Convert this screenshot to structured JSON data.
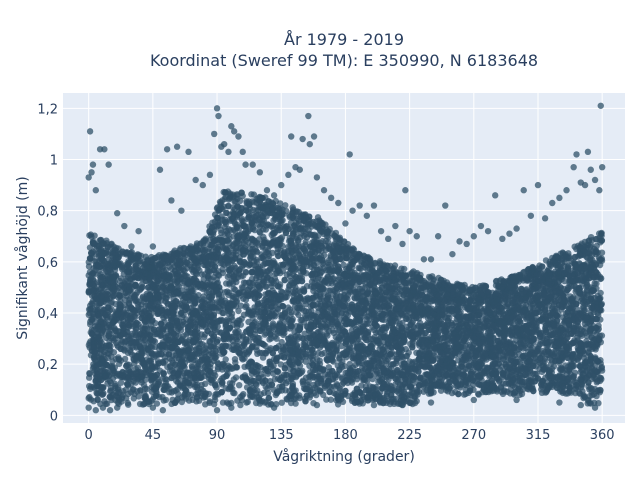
{
  "chart_data": {
    "type": "scatter",
    "title": [
      "År 1979 - 2019",
      "Koordinat (Sweref 99 TM): E 350990, N 6183648"
    ],
    "xlabel": "Vågriktning (grader)",
    "ylabel": "Signifikant våghöjd (m)",
    "x_ticks": [
      0,
      45,
      90,
      135,
      180,
      225,
      270,
      315,
      360
    ],
    "x_tick_labels": [
      "0",
      "45",
      "90",
      "135",
      "180",
      "225",
      "270",
      "315",
      "360"
    ],
    "y_ticks": [
      0,
      0.2,
      0.4,
      0.6,
      0.8,
      1,
      1.2
    ],
    "y_tick_labels": [
      "0",
      "0,2",
      "0,4",
      "0,6",
      "0,8",
      "1",
      "1,2"
    ],
    "xlim": [
      -18,
      376
    ],
    "ylim": [
      -0.03,
      1.26
    ],
    "grid": true,
    "marker_color": "#2f5168",
    "background_color": "#e5ecf6",
    "series": [
      {
        "points": [
          [
            0,
            0.93
          ],
          [
            1,
            1.11
          ],
          [
            2,
            0.95
          ],
          [
            3,
            0.98
          ],
          [
            5,
            0.88
          ],
          [
            8,
            1.04
          ],
          [
            11,
            1.04
          ],
          [
            14,
            0.98
          ],
          [
            20,
            0.79
          ],
          [
            25,
            0.74
          ],
          [
            30,
            0.66
          ],
          [
            35,
            0.72
          ],
          [
            40,
            0.62
          ],
          [
            45,
            0.66
          ],
          [
            50,
            0.96
          ],
          [
            55,
            1.04
          ],
          [
            58,
            0.84
          ],
          [
            62,
            1.05
          ],
          [
            65,
            0.8
          ],
          [
            70,
            1.03
          ],
          [
            75,
            0.92
          ],
          [
            80,
            0.9
          ],
          [
            85,
            0.94
          ],
          [
            88,
            1.1
          ],
          [
            90,
            1.2
          ],
          [
            91,
            1.17
          ],
          [
            93,
            1.05
          ],
          [
            95,
            1.06
          ],
          [
            98,
            1.03
          ],
          [
            100,
            1.13
          ],
          [
            102,
            1.11
          ],
          [
            105,
            1.09
          ],
          [
            108,
            1.03
          ],
          [
            110,
            0.98
          ],
          [
            115,
            0.98
          ],
          [
            120,
            0.95
          ],
          [
            125,
            0.88
          ],
          [
            130,
            0.86
          ],
          [
            135,
            0.9
          ],
          [
            140,
            0.94
          ],
          [
            142,
            1.09
          ],
          [
            145,
            0.97
          ],
          [
            148,
            0.96
          ],
          [
            150,
            1.08
          ],
          [
            154,
            1.17
          ],
          [
            155,
            1.06
          ],
          [
            158,
            1.09
          ],
          [
            160,
            0.93
          ],
          [
            165,
            0.88
          ],
          [
            170,
            0.85
          ],
          [
            175,
            0.83
          ],
          [
            180,
            0.75
          ],
          [
            183,
            1.02
          ],
          [
            185,
            0.8
          ],
          [
            190,
            0.82
          ],
          [
            195,
            0.78
          ],
          [
            200,
            0.82
          ],
          [
            205,
            0.72
          ],
          [
            210,
            0.69
          ],
          [
            215,
            0.74
          ],
          [
            220,
            0.67
          ],
          [
            222,
            0.88
          ],
          [
            225,
            0.72
          ],
          [
            230,
            0.7
          ],
          [
            235,
            0.61
          ],
          [
            240,
            0.61
          ],
          [
            245,
            0.7
          ],
          [
            250,
            0.82
          ],
          [
            255,
            0.63
          ],
          [
            260,
            0.68
          ],
          [
            265,
            0.67
          ],
          [
            270,
            0.7
          ],
          [
            275,
            0.74
          ],
          [
            280,
            0.72
          ],
          [
            285,
            0.86
          ],
          [
            290,
            0.69
          ],
          [
            295,
            0.71
          ],
          [
            300,
            0.73
          ],
          [
            305,
            0.88
          ],
          [
            310,
            0.78
          ],
          [
            315,
            0.9
          ],
          [
            320,
            0.77
          ],
          [
            325,
            0.83
          ],
          [
            330,
            0.85
          ],
          [
            335,
            0.88
          ],
          [
            340,
            0.97
          ],
          [
            342,
            1.02
          ],
          [
            345,
            0.91
          ],
          [
            348,
            0.9
          ],
          [
            350,
            1.03
          ],
          [
            352,
            0.96
          ],
          [
            355,
            0.92
          ],
          [
            358,
            0.88
          ],
          [
            359,
            1.21
          ],
          [
            360,
            0.97
          ],
          [
            0,
            0.03
          ],
          [
            5,
            0.02
          ],
          [
            10,
            0.03
          ],
          [
            15,
            0.02
          ],
          [
            20,
            0.03
          ],
          [
            45,
            0.03
          ],
          [
            52,
            0.02
          ],
          [
            90,
            0.02
          ],
          [
            100,
            0.03
          ],
          [
            130,
            0.03
          ],
          [
            160,
            0.04
          ],
          [
            200,
            0.04
          ],
          [
            220,
            0.04
          ],
          [
            240,
            0.05
          ],
          [
            270,
            0.06
          ],
          [
            300,
            0.06
          ],
          [
            330,
            0.05
          ],
          [
            345,
            0.04
          ],
          [
            355,
            0.03
          ]
        ]
      }
    ]
  }
}
